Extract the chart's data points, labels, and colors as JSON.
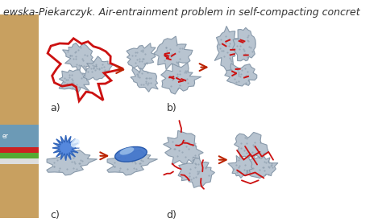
{
  "title_text": "ewska-Piekarczyk. Air-entrainment problem in self-compacting concret",
  "title_fontsize": 9,
  "title_style": "italic",
  "bg_color": "#ffffff",
  "labels": [
    "a)",
    "b)",
    "c)",
    "d)"
  ],
  "arrow_color": "#bb2200",
  "particle_fill": "#b8c4d0",
  "particle_edge": "#8899aa",
  "red_outline_color": "#cc1111",
  "red_line_color": "#cc1111",
  "red_chain_color": "#cc1111"
}
